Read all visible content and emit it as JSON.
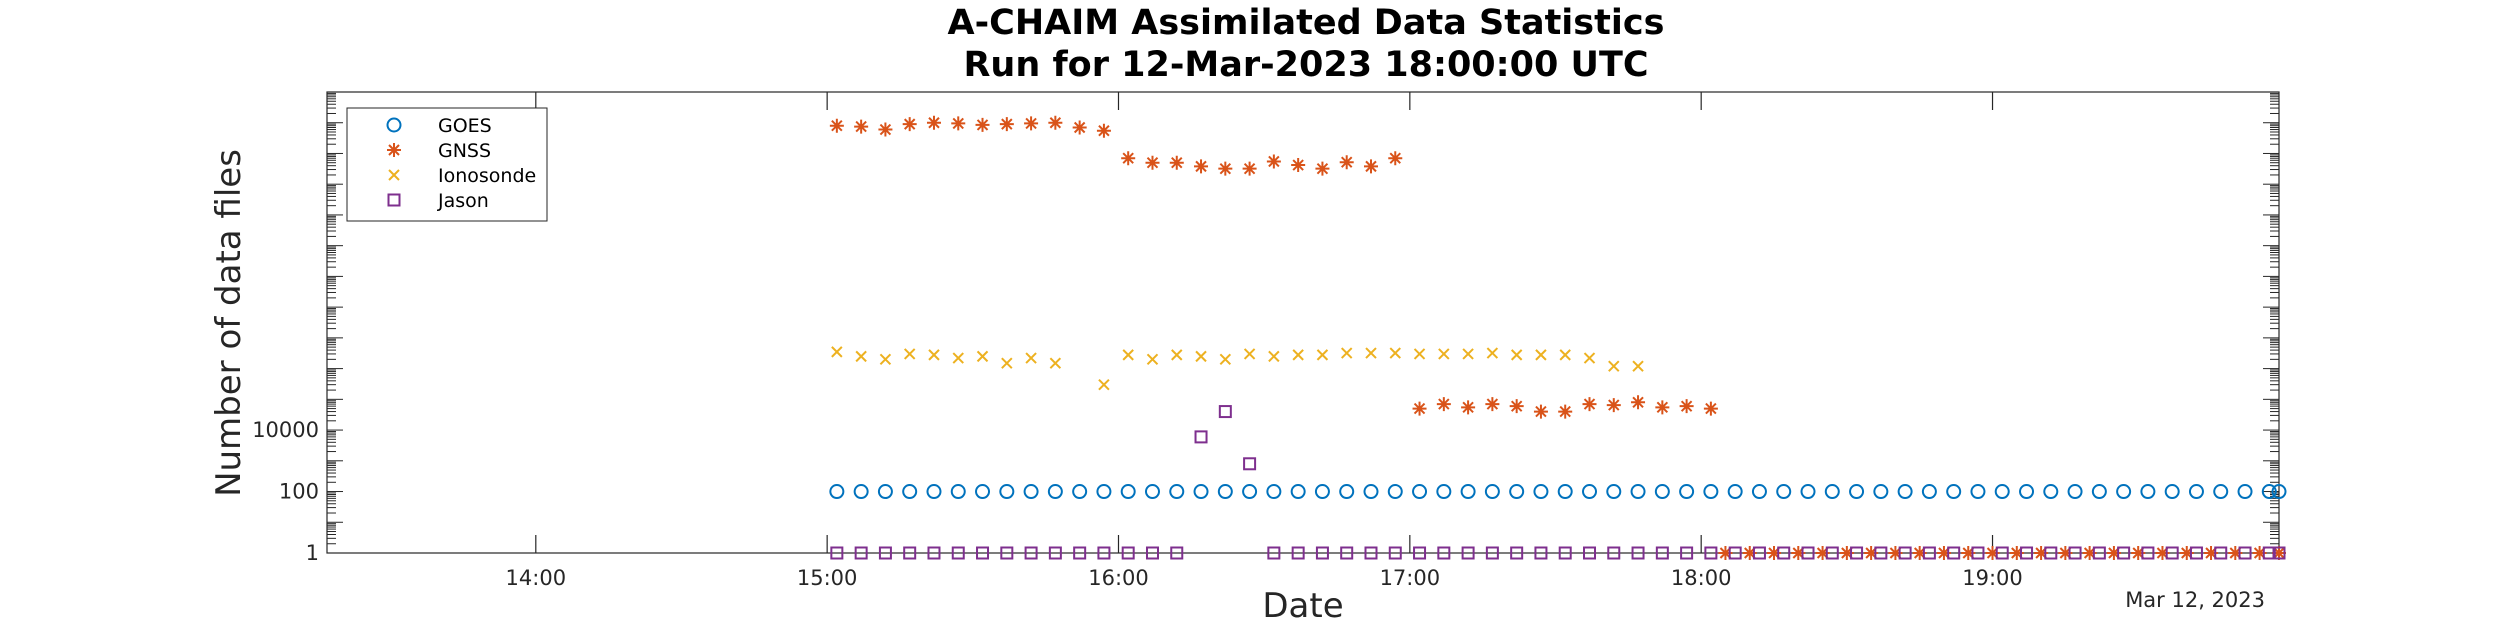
{
  "chart_data": {
    "type": "scatter",
    "title": [
      "A-CHAIM Assimilated Data Statistics",
      "Run for 12-Mar-2023 18:00:00 UTC"
    ],
    "xlabel": "Date",
    "ylabel": "Number of data files",
    "x_units": "hours since 12-Mar-2023 00:00 UTC",
    "xlim": [
      13.2833,
      19.9833
    ],
    "x_ticks": [
      14,
      15,
      16,
      17,
      18,
      19
    ],
    "x_tick_labels": [
      "14:00",
      "15:00",
      "16:00",
      "17:00",
      "18:00",
      "19:00"
    ],
    "x_date_note": "Mar 12, 2023",
    "yscale": "log",
    "ylim": [
      1,
      1000000000000000
    ],
    "y_ticks": [
      1,
      100,
      10000
    ],
    "y_tick_labels": [
      "1",
      "100",
      "10000"
    ],
    "legend_position": "top-left",
    "series": [
      {
        "name": "GOES",
        "marker": "circle",
        "color": "#0072BD",
        "points": [
          [
            15.0333,
            100
          ],
          [
            15.1167,
            100
          ],
          [
            15.2,
            100
          ],
          [
            15.2833,
            100
          ],
          [
            15.3667,
            100
          ],
          [
            15.45,
            100
          ],
          [
            15.5333,
            100
          ],
          [
            15.6167,
            100
          ],
          [
            15.7,
            100
          ],
          [
            15.7833,
            100
          ],
          [
            15.8667,
            100
          ],
          [
            15.95,
            100
          ],
          [
            16.0333,
            100
          ],
          [
            16.1167,
            100
          ],
          [
            16.2,
            100
          ],
          [
            16.2833,
            100
          ],
          [
            16.3667,
            100
          ],
          [
            16.45,
            100
          ],
          [
            16.5333,
            100
          ],
          [
            16.6167,
            100
          ],
          [
            16.7,
            100
          ],
          [
            16.7833,
            100
          ],
          [
            16.8667,
            100
          ],
          [
            16.95,
            100
          ],
          [
            17.0333,
            100
          ],
          [
            17.1167,
            100
          ],
          [
            17.2,
            100
          ],
          [
            17.2833,
            100
          ],
          [
            17.3667,
            100
          ],
          [
            17.45,
            100
          ],
          [
            17.5333,
            100
          ],
          [
            17.6167,
            100
          ],
          [
            17.7,
            100
          ],
          [
            17.7833,
            100
          ],
          [
            17.8667,
            100
          ],
          [
            17.95,
            100
          ],
          [
            18.0333,
            100
          ],
          [
            18.1167,
            100
          ],
          [
            18.2,
            100
          ],
          [
            18.2833,
            100
          ],
          [
            18.3667,
            100
          ],
          [
            18.45,
            100
          ],
          [
            18.5333,
            100
          ],
          [
            18.6167,
            100
          ],
          [
            18.7,
            100
          ],
          [
            18.7833,
            100
          ],
          [
            18.8667,
            100
          ],
          [
            18.95,
            100
          ],
          [
            19.0333,
            100
          ],
          [
            19.1167,
            100
          ],
          [
            19.2,
            100
          ],
          [
            19.2833,
            100
          ],
          [
            19.3667,
            100
          ],
          [
            19.45,
            100
          ],
          [
            19.5333,
            100
          ],
          [
            19.6167,
            100
          ],
          [
            19.7,
            100
          ],
          [
            19.7833,
            100
          ],
          [
            19.8667,
            100
          ],
          [
            19.95,
            100
          ],
          [
            19.9833,
            100
          ]
        ]
      },
      {
        "name": "GNSS",
        "marker": "star",
        "color": "#D95319",
        "points": [
          [
            15.0333,
            80000000000000
          ],
          [
            15.1167,
            75000000000000
          ],
          [
            15.2,
            60000000000000
          ],
          [
            15.2833,
            90000000000000
          ],
          [
            15.3667,
            100000000000000
          ],
          [
            15.45,
            95000000000000
          ],
          [
            15.5333,
            85000000000000
          ],
          [
            15.6167,
            90000000000000
          ],
          [
            15.7,
            95000000000000
          ],
          [
            15.7833,
            100000000000000
          ],
          [
            15.8667,
            70000000000000
          ],
          [
            15.95,
            55000000000000
          ],
          [
            16.0333,
            7000000000000
          ],
          [
            16.1167,
            5000000000000
          ],
          [
            16.2,
            5000000000000
          ],
          [
            16.2833,
            3800000000000
          ],
          [
            16.3667,
            3200000000000
          ],
          [
            16.45,
            3200000000000
          ],
          [
            16.5333,
            5500000000000
          ],
          [
            16.6167,
            4200000000000
          ],
          [
            16.7,
            3200000000000
          ],
          [
            16.7833,
            5200000000000
          ],
          [
            16.8667,
            3800000000000
          ],
          [
            16.95,
            7000000000000
          ],
          [
            17.0333,
            50000
          ],
          [
            17.1167,
            70000
          ],
          [
            17.2,
            55000
          ],
          [
            17.2833,
            70000
          ],
          [
            17.3667,
            60000
          ],
          [
            17.45,
            40000
          ],
          [
            17.5333,
            40000
          ],
          [
            17.6167,
            70000
          ],
          [
            17.7,
            65000
          ],
          [
            17.7833,
            80000
          ],
          [
            17.8667,
            55000
          ],
          [
            17.95,
            60000
          ],
          [
            18.0333,
            50000
          ],
          [
            18.0833,
            1
          ],
          [
            18.1667,
            1
          ],
          [
            18.25,
            1
          ],
          [
            18.3333,
            1
          ],
          [
            18.4167,
            1
          ],
          [
            18.5,
            1
          ],
          [
            18.5833,
            1
          ],
          [
            18.6667,
            1
          ],
          [
            18.75,
            1
          ],
          [
            18.8333,
            1
          ],
          [
            18.9167,
            1
          ],
          [
            19.0,
            1
          ],
          [
            19.0833,
            1
          ],
          [
            19.1667,
            1
          ],
          [
            19.25,
            1
          ],
          [
            19.3333,
            1
          ],
          [
            19.4167,
            1
          ],
          [
            19.5,
            1
          ],
          [
            19.5833,
            1
          ],
          [
            19.6667,
            1
          ],
          [
            19.75,
            1
          ],
          [
            19.8333,
            1
          ],
          [
            19.9167,
            1
          ],
          [
            19.9833,
            1
          ]
        ]
      },
      {
        "name": "Ionosonde",
        "marker": "x",
        "color": "#EDB120",
        "points": [
          [
            15.0333,
            3500000
          ],
          [
            15.1167,
            2500000
          ],
          [
            15.2,
            2000000
          ],
          [
            15.2833,
            3000000
          ],
          [
            15.3667,
            2800000
          ],
          [
            15.45,
            2200000
          ],
          [
            15.5333,
            2500000
          ],
          [
            15.6167,
            1500000
          ],
          [
            15.7,
            2200000
          ],
          [
            15.7833,
            1500000
          ],
          [
            15.95,
            300000
          ],
          [
            16.0333,
            2800000
          ],
          [
            16.1167,
            2000000
          ],
          [
            16.2,
            2800000
          ],
          [
            16.2833,
            2500000
          ],
          [
            16.3667,
            2000000
          ],
          [
            16.45,
            3000000
          ],
          [
            16.5333,
            2500000
          ],
          [
            16.6167,
            2800000
          ],
          [
            16.7,
            2800000
          ],
          [
            16.7833,
            3200000
          ],
          [
            16.8667,
            3200000
          ],
          [
            16.95,
            3200000
          ],
          [
            17.0333,
            3000000
          ],
          [
            17.1167,
            3000000
          ],
          [
            17.2,
            3000000
          ],
          [
            17.2833,
            3200000
          ],
          [
            17.3667,
            2800000
          ],
          [
            17.45,
            2800000
          ],
          [
            17.5333,
            2800000
          ],
          [
            17.6167,
            2200000
          ],
          [
            17.7,
            1200000
          ],
          [
            17.7833,
            1200000
          ],
          [
            17.8667,
            1,
            "hidden"
          ]
        ]
      },
      {
        "name": "Jason",
        "marker": "square",
        "color": "#7E2F8E",
        "points": [
          [
            15.0333,
            1
          ],
          [
            15.1167,
            1
          ],
          [
            15.2,
            1
          ],
          [
            15.2833,
            1
          ],
          [
            15.3667,
            1
          ],
          [
            15.45,
            1
          ],
          [
            15.5333,
            1
          ],
          [
            15.6167,
            1
          ],
          [
            15.7,
            1
          ],
          [
            15.7833,
            1
          ],
          [
            15.8667,
            1
          ],
          [
            15.95,
            1
          ],
          [
            16.0333,
            1
          ],
          [
            16.1167,
            1
          ],
          [
            16.2,
            1
          ],
          [
            16.2833,
            6000
          ],
          [
            16.3667,
            40000
          ],
          [
            16.45,
            800
          ],
          [
            16.5333,
            1
          ],
          [
            16.6167,
            1
          ],
          [
            16.7,
            1
          ],
          [
            16.7833,
            1
          ],
          [
            16.8667,
            1
          ],
          [
            16.95,
            1
          ],
          [
            17.0333,
            1
          ],
          [
            17.1167,
            1
          ],
          [
            17.2,
            1
          ],
          [
            17.2833,
            1
          ],
          [
            17.3667,
            1
          ],
          [
            17.45,
            1
          ],
          [
            17.5333,
            1
          ],
          [
            17.6167,
            1
          ],
          [
            17.7,
            1
          ],
          [
            17.7833,
            1
          ],
          [
            17.8667,
            1
          ],
          [
            17.95,
            1
          ],
          [
            18.0333,
            1
          ],
          [
            18.1167,
            1
          ],
          [
            18.2,
            1
          ],
          [
            18.2833,
            1
          ],
          [
            18.3667,
            1
          ],
          [
            18.45,
            1
          ],
          [
            18.5333,
            1
          ],
          [
            18.6167,
            1
          ],
          [
            18.7,
            1
          ],
          [
            18.7833,
            1
          ],
          [
            18.8667,
            1
          ],
          [
            18.95,
            1
          ],
          [
            19.0333,
            1
          ],
          [
            19.1167,
            1
          ],
          [
            19.2,
            1
          ],
          [
            19.2833,
            1
          ],
          [
            19.3667,
            1
          ],
          [
            19.45,
            1
          ],
          [
            19.5333,
            1
          ],
          [
            19.6167,
            1
          ],
          [
            19.7,
            1
          ],
          [
            19.7833,
            1
          ],
          [
            19.8667,
            1
          ],
          [
            19.95,
            1
          ],
          [
            19.9833,
            1
          ]
        ]
      }
    ]
  }
}
